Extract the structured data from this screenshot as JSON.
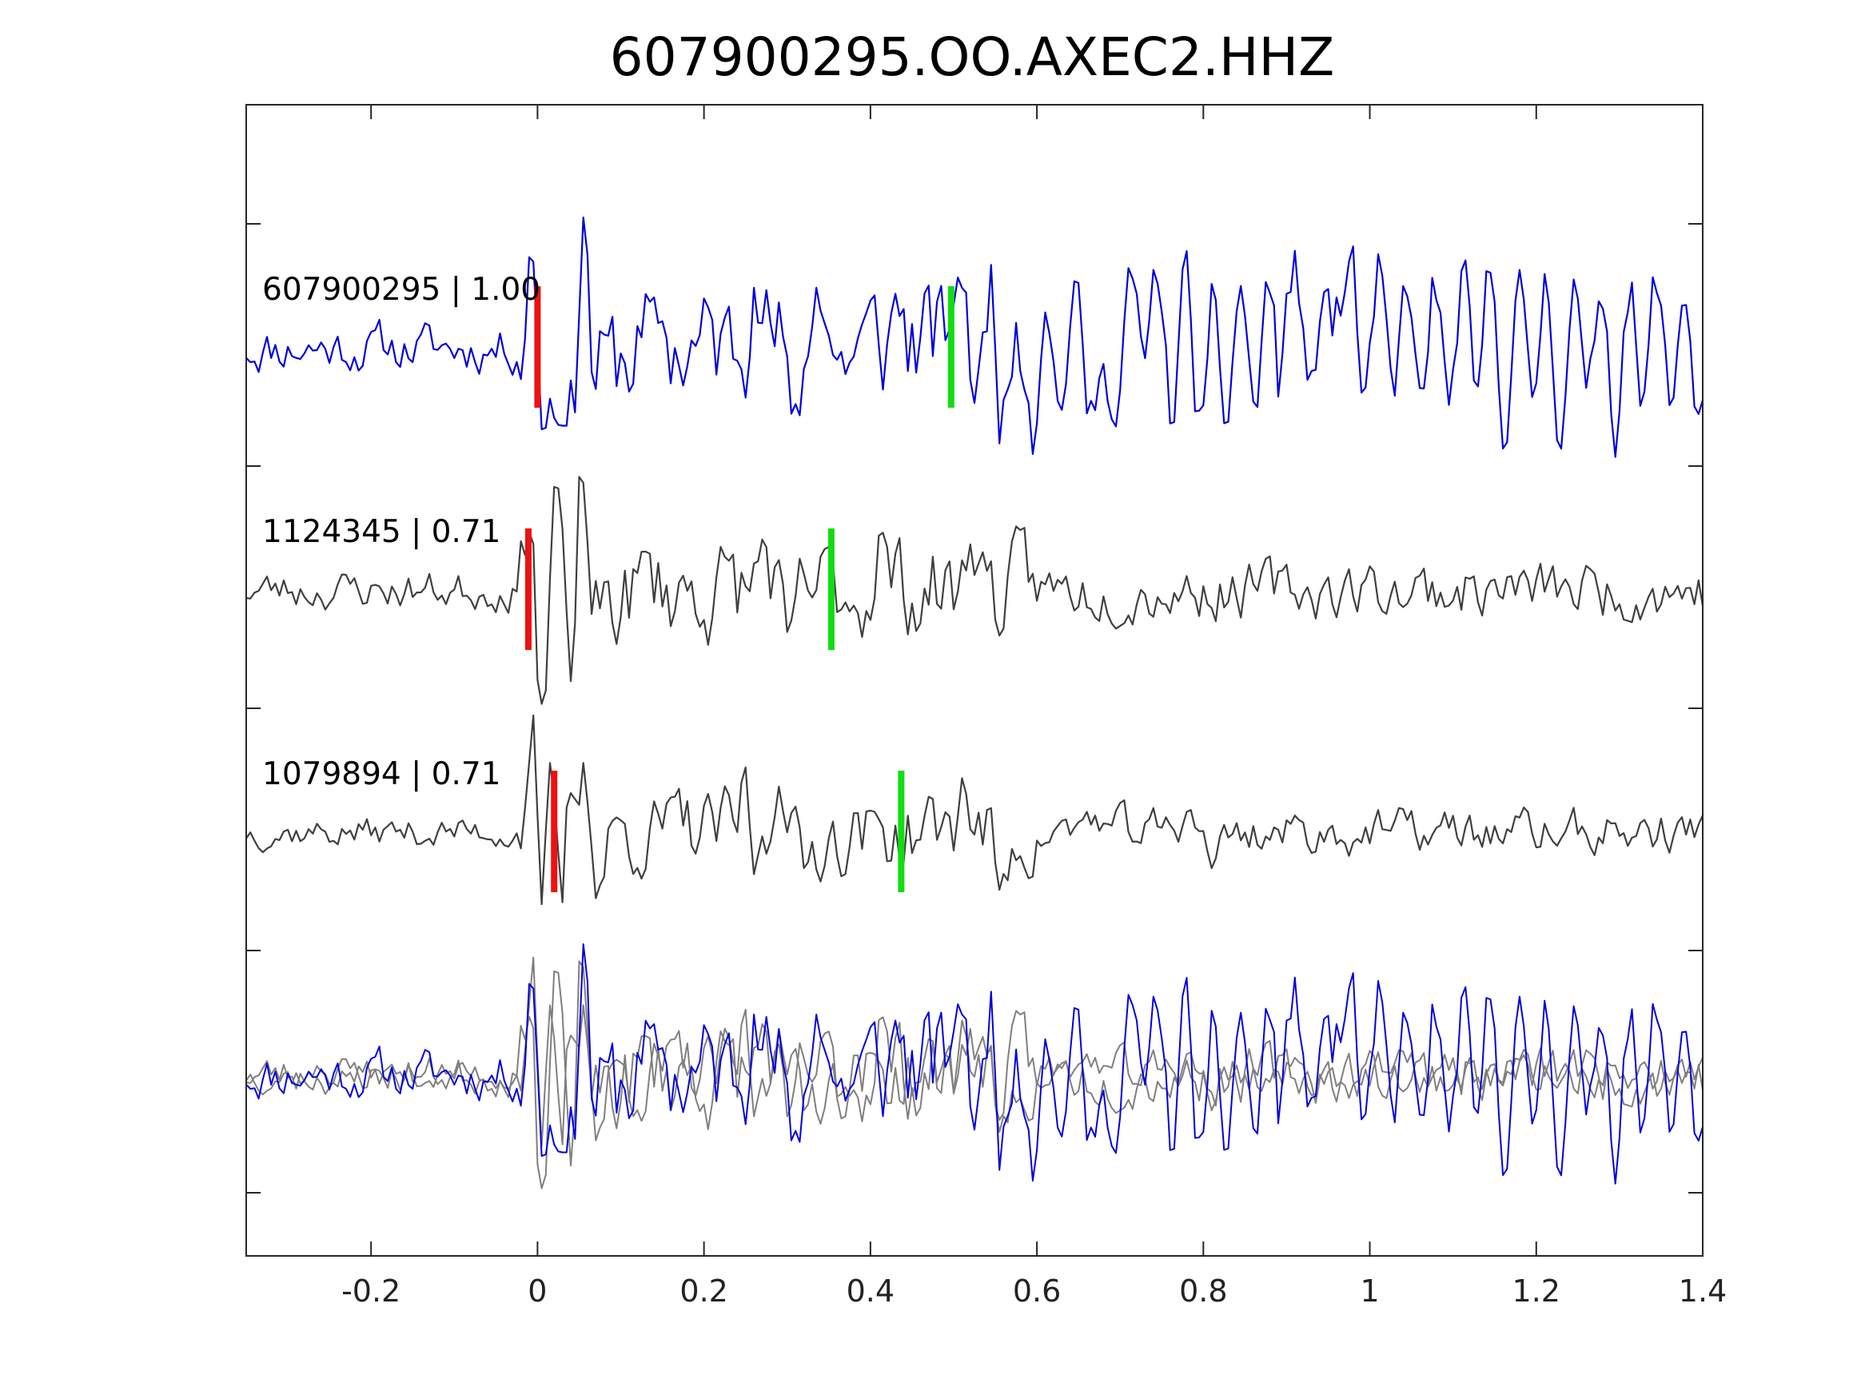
{
  "chart_data": {
    "type": "line",
    "title": "607900295.OO.AXEC2.HHZ",
    "xlabel": "",
    "ylabel": "",
    "xlim": [
      -0.35,
      1.4
    ],
    "xticks": [
      -0.2,
      0,
      0.2,
      0.4,
      0.6,
      0.8,
      1,
      1.2,
      1.4
    ],
    "xtick_labels": [
      "-0.2",
      "0",
      "0.2",
      "0.4",
      "0.6",
      "0.8",
      "1",
      "1.2",
      "1.4"
    ],
    "y_tick_count": 5,
    "grid": false,
    "sample_step": 0.005,
    "traces": [
      {
        "label": "607900295 | 1.00",
        "color": "#0000dd",
        "p_pick": 0.0,
        "s_pick": 0.497,
        "seed": 11,
        "amp": 0.35,
        "anchors": [
          [
            -0.009,
            0.75
          ],
          [
            -0.002,
            0.86
          ],
          [
            0.005,
            -0.68
          ],
          [
            0.02,
            -0.58
          ],
          [
            0.03,
            -0.65
          ],
          [
            0.035,
            -0.65
          ],
          [
            0.055,
            1.1
          ],
          [
            0.068,
            -0.35
          ],
          [
            0.085,
            0.1
          ],
          [
            0.14,
            0.42
          ],
          [
            0.26,
            0.5
          ],
          [
            0.305,
            -0.55
          ],
          [
            0.335,
            0.5
          ],
          [
            0.36,
            -0.1
          ],
          [
            0.43,
            0.45
          ],
          [
            0.5,
            0.35
          ],
          [
            0.51,
            0.5
          ],
          [
            0.585,
            -0.35
          ],
          [
            0.67,
            -0.52
          ],
          [
            0.72,
            0.45
          ],
          [
            0.8,
            -0.48
          ],
          [
            0.9,
            0.45
          ],
          [
            0.96,
            0.42
          ]
        ],
        "osc": [
          [
            0.5,
            1.4,
            30,
            0.45
          ]
        ]
      },
      {
        "label": "1124345 | 0.71",
        "color": "#3f3f3f",
        "p_pick": -0.011,
        "s_pick": 0.353,
        "seed": 23,
        "amp": 0.28,
        "anchors": [
          [
            -0.012,
            0.38
          ],
          [
            -0.005,
            0.68
          ],
          [
            0.003,
            -1.05
          ],
          [
            0.01,
            -0.95
          ],
          [
            0.02,
            0.86
          ],
          [
            0.04,
            -0.78
          ],
          [
            0.043,
            -0.8
          ],
          [
            0.052,
            1.1
          ],
          [
            0.06,
            1.0
          ],
          [
            0.065,
            -0.2
          ],
          [
            0.13,
            0.32
          ],
          [
            0.27,
            0.42
          ],
          [
            0.3,
            -0.35
          ],
          [
            0.41,
            0.5
          ],
          [
            0.4,
            -0.25
          ],
          [
            0.52,
            0.38
          ],
          [
            0.555,
            -0.38
          ]
        ],
        "osc": []
      },
      {
        "label": "1079894 | 0.71",
        "color": "#3f3f3f",
        "p_pick": 0.02,
        "s_pick": 0.437,
        "seed": 37,
        "amp": 0.22,
        "anchors": [
          [
            -0.012,
            0.28
          ],
          [
            -0.004,
            1.1
          ],
          [
            0.005,
            -0.68
          ],
          [
            0.015,
            0.58
          ],
          [
            0.03,
            -0.78
          ],
          [
            0.038,
            0.38
          ],
          [
            0.055,
            0.58
          ],
          [
            0.07,
            -0.55
          ],
          [
            0.25,
            0.6
          ],
          [
            0.26,
            -0.35
          ],
          [
            0.29,
            0.38
          ],
          [
            0.32,
            -0.3
          ],
          [
            0.4,
            0.18
          ],
          [
            0.51,
            0.45
          ],
          [
            0.555,
            -0.48
          ],
          [
            0.66,
            0.17
          ],
          [
            0.78,
            0.17
          ],
          [
            0.81,
            -0.3
          ]
        ],
        "osc": []
      },
      {
        "label": "",
        "overlay": true,
        "members": [
          1,
          2,
          0
        ],
        "colors": [
          "#7f7f7f",
          "#7f7f7f",
          "#0000dd"
        ]
      }
    ]
  }
}
